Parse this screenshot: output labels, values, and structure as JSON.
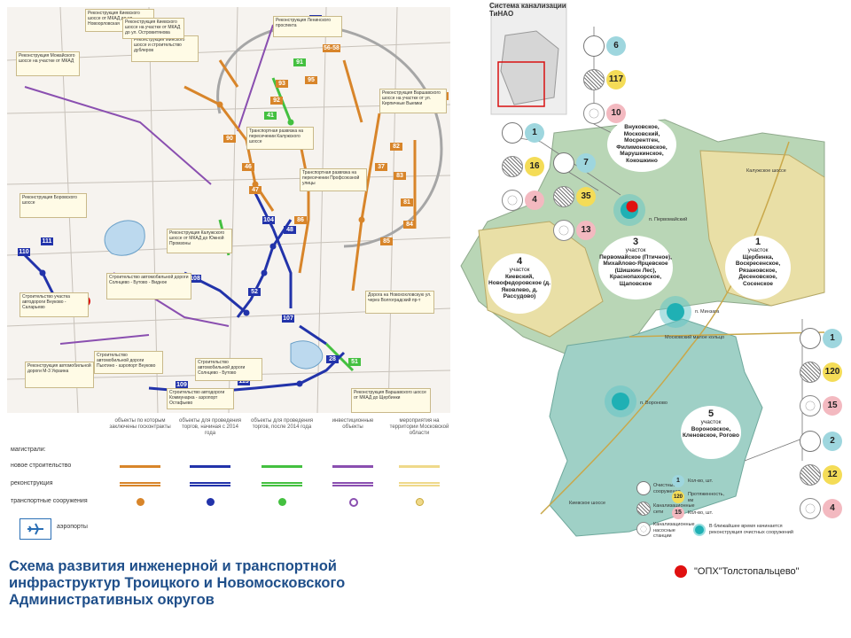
{
  "title": "Схема развития инженерной и транспортной инфраструктур Троицкого и Новомосковского Административных округов",
  "marker": {
    "label": "\"ОПХ\"Толстопальцево\"",
    "color": "#e01010"
  },
  "colors": {
    "orange": "#d8852a",
    "blue": "#2233aa",
    "green": "#44c040",
    "purple": "#8a4fb0",
    "yellow": "#efd98a",
    "water_green": "#9fd0c6",
    "zone_green": "#b9d6b6",
    "zone_yellow": "#e9dfa6"
  },
  "left_map": {
    "route_numbers": [
      {
        "text": "23",
        "color": "#2233aa"
      },
      {
        "text": "56-58",
        "color": "#d8852a"
      },
      {
        "text": "91",
        "color": "#44c040"
      },
      {
        "text": "95",
        "color": "#d8852a"
      },
      {
        "text": "93",
        "color": "#d8852a"
      },
      {
        "text": "92",
        "color": "#d8852a"
      },
      {
        "text": "41",
        "color": "#44c040"
      },
      {
        "text": "90",
        "color": "#d8852a"
      },
      {
        "text": "46",
        "color": "#d8852a"
      },
      {
        "text": "47",
        "color": "#d8852a"
      },
      {
        "text": "86",
        "color": "#d8852a"
      },
      {
        "text": "104",
        "color": "#2233aa"
      },
      {
        "text": "48",
        "color": "#2233aa"
      },
      {
        "text": "108",
        "color": "#2233aa"
      },
      {
        "text": "52",
        "color": "#2233aa"
      },
      {
        "text": "110",
        "color": "#2233aa"
      },
      {
        "text": "111",
        "color": "#2233aa"
      },
      {
        "text": "105",
        "color": "#2233aa"
      },
      {
        "text": "109",
        "color": "#2233aa"
      },
      {
        "text": "113",
        "color": "#2233aa"
      },
      {
        "text": "107",
        "color": "#2233aa"
      },
      {
        "text": "28",
        "color": "#2233aa"
      },
      {
        "text": "51",
        "color": "#44c040"
      },
      {
        "text": "83",
        "color": "#d8852a"
      },
      {
        "text": "84",
        "color": "#d8852a"
      },
      {
        "text": "85",
        "color": "#d8852a"
      },
      {
        "text": "37",
        "color": "#d8852a"
      },
      {
        "text": "82",
        "color": "#d8852a"
      },
      {
        "text": "81",
        "color": "#d8852a"
      },
      {
        "text": "97",
        "color": "#d8852a"
      }
    ],
    "notes": [
      "Реконструкция Киевского шоссе от МКАД до ул. Новоорловская",
      "Реконструкция Минского шоссе и строительство дублеров",
      "Реконструкция Можайского шоссе на участке от МКАД",
      "Реконструкция Боровского шоссе",
      "Реконструкция Калужского шоссе от МКАД до Южной Промзоны",
      "Транспортная развязка на пересечении Калужского шоссе",
      "Реконструкция Варшавского шоссе от МКАД до Щербинки",
      "Строительство автомобильной дороги Солнцево - Бутово - Видное",
      "Строительство автомобильной дороги Пыхтино - аэропорт Внуково",
      "Реконструкция Киевского шоссе на участке от МКАД до ул. Островитянова",
      "Реконструкция Варшавского шоссе на участке от ул. Кирпичные Выемки",
      "Строительство автодороги Коммунарка - аэропорт Остафьево",
      "Транспортная развязка на пересечении Профсоюзной улицы",
      "Строительство участка автодороги Внуково - Саларьево",
      "Реконструкция автомобильной дороги М-3 Украина",
      "Строительство автомобильной дороги Солнцево - Бутово",
      "Дорога на Новохохловскую ул. через Волгоградский пр-т",
      "Реконструкция Ленинского проспекта"
    ]
  },
  "legend": {
    "columns": [
      "объекты по которым заключены госконтракты",
      "объекты для проведения торгов, начиная с 2014 года",
      "объекты для проведения торгов, после 2014 года",
      "инвестиционные объекты",
      "мероприятия на территории Московской области"
    ],
    "rows": {
      "magistrals": "магистрали:",
      "new_build": "новое строительство",
      "reconstruction": "реконструкция",
      "transport": "транспортные сооружения",
      "airports": "аэропорты"
    },
    "airport_icon": "airplane-icon"
  },
  "right_map": {
    "title": "Система канализации ТиНАО",
    "zones": [
      {
        "number": "",
        "names": "Внуковское, Московский, Мосрентген, Филимонковское, Марушкинское, Кокошкино"
      },
      {
        "number": "3",
        "names": "Первомайское (Птичное), Михайлово-Ярцевское (Шишкин Лес), Краснопахорское, Щаповское",
        "unit": "участок"
      },
      {
        "number": "1",
        "names": "Щербинка, Воскресенское, Рязановское, Десеновское, Сосенское",
        "unit": "участок"
      },
      {
        "number": "4",
        "names": "Киевский, Новофедоровское (д. Яковлево, д. Рассудово)",
        "unit": "участок"
      },
      {
        "number": "5",
        "names": "Вороновское, Кленовское, Роговo",
        "unit": "участок"
      }
    ],
    "place_labels": [
      "п. Первомайский",
      "п. Минзага",
      "п. Вороново",
      "Московский малое кольцо",
      "Киевское шоссе",
      "Калужское шоссе"
    ],
    "stats_groups": [
      [
        "6",
        "117",
        "10"
      ],
      [
        "1",
        "16",
        "4"
      ],
      [
        "7",
        "35",
        "13"
      ],
      [
        "1",
        "120",
        "15"
      ],
      [
        "2",
        "12",
        "4"
      ]
    ],
    "legend": {
      "treatment": "Очистные сооружения",
      "sewer": "Канализационные сети",
      "pump": "Канализационные насосные станции",
      "count_label": "Кол-во, шт.",
      "length_label": "Протяженность, км",
      "count_label2": "Кол-во, шт.",
      "reconstruction_note": "В ближайшее время начинается реконструкция очистных сооружений",
      "sample_values": [
        "1",
        "120",
        "15"
      ]
    }
  }
}
